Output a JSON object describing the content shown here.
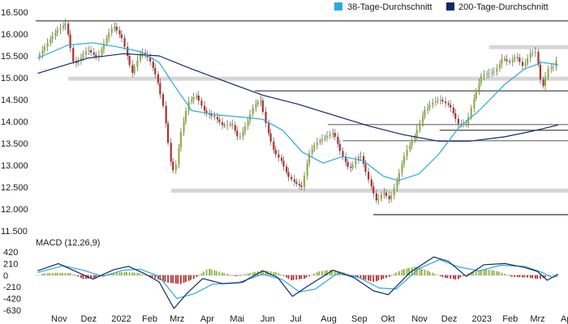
{
  "chart_data": [
    {
      "type": "candlestick",
      "title": "",
      "y_ticks": [
        "16.500",
        "16.000",
        "15.500",
        "15.000",
        "14.500",
        "14.000",
        "13.500",
        "13.000",
        "12.500",
        "12.000",
        "11.500"
      ],
      "ylim": [
        11500,
        16500
      ],
      "x_tick_labels": [
        "Nov",
        "Dez",
        "2022",
        "Feb",
        "Mrz",
        "Apr",
        "Mai",
        "Jun",
        "Jul",
        "Aug",
        "Sep",
        "Okt",
        "Nov",
        "Dez",
        "2023",
        "Feb",
        "Mrz",
        "Apr"
      ],
      "x_dates": [
        "2021-11-01",
        "2021-12-01",
        "2022-01-01",
        "2022-02-01",
        "2022-03-01",
        "2022-04-01",
        "2022-05-01",
        "2022-06-01",
        "2022-07-01",
        "2022-08-01",
        "2022-09-01",
        "2022-10-01",
        "2022-11-01",
        "2022-12-01",
        "2023-01-01",
        "2023-02-01",
        "2023-03-01",
        "2023-04-01"
      ],
      "x_range": [
        "2021-10-18",
        "2023-04-10"
      ],
      "legend": [
        {
          "name": "38-Tage-Durchschnitt",
          "color": "#29a9e0"
        },
        {
          "name": "200-Tage-Durchschnitt",
          "color": "#0d2a6b"
        }
      ],
      "legend_position": "top-right",
      "colors": {
        "up": "#8cb33a",
        "down": "#b2302b",
        "wick": "#555555"
      },
      "series_close": [
        [
          "2021-10-20",
          15450
        ],
        [
          "2021-11-01",
          15850
        ],
        [
          "2021-11-08",
          16050
        ],
        [
          "2021-11-18",
          16250
        ],
        [
          "2021-11-26",
          15300
        ],
        [
          "2021-12-01",
          15400
        ],
        [
          "2021-12-10",
          15650
        ],
        [
          "2021-12-20",
          15450
        ],
        [
          "2021-12-30",
          15950
        ],
        [
          "2022-01-05",
          16200
        ],
        [
          "2022-01-14",
          15900
        ],
        [
          "2022-01-24",
          15100
        ],
        [
          "2022-02-02",
          15600
        ],
        [
          "2022-02-10",
          15450
        ],
        [
          "2022-02-18",
          15000
        ],
        [
          "2022-02-25",
          14300
        ],
        [
          "2022-03-04",
          13100
        ],
        [
          "2022-03-08",
          12800
        ],
        [
          "2022-03-14",
          13700
        ],
        [
          "2022-03-22",
          14450
        ],
        [
          "2022-03-30",
          14600
        ],
        [
          "2022-04-08",
          14200
        ],
        [
          "2022-04-18",
          14100
        ],
        [
          "2022-04-26",
          13900
        ],
        [
          "2022-05-05",
          13950
        ],
        [
          "2022-05-12",
          13600
        ],
        [
          "2022-05-20",
          13950
        ],
        [
          "2022-05-27",
          14350
        ],
        [
          "2022-06-03",
          14500
        ],
        [
          "2022-06-10",
          13800
        ],
        [
          "2022-06-17",
          13300
        ],
        [
          "2022-06-24",
          13100
        ],
        [
          "2022-07-01",
          12750
        ],
        [
          "2022-07-08",
          12600
        ],
        [
          "2022-07-15",
          12500
        ],
        [
          "2022-07-22",
          13250
        ],
        [
          "2022-07-29",
          13500
        ],
        [
          "2022-08-08",
          13650
        ],
        [
          "2022-08-16",
          13750
        ],
        [
          "2022-08-24",
          13250
        ],
        [
          "2022-09-01",
          12900
        ],
        [
          "2022-09-12",
          13250
        ],
        [
          "2022-09-20",
          12700
        ],
        [
          "2022-09-29",
          12150
        ],
        [
          "2022-10-05",
          12400
        ],
        [
          "2022-10-12",
          12200
        ],
        [
          "2022-10-20",
          12700
        ],
        [
          "2022-10-28",
          13300
        ],
        [
          "2022-11-07",
          13700
        ],
        [
          "2022-11-16",
          14250
        ],
        [
          "2022-11-25",
          14450
        ],
        [
          "2022-12-02",
          14500
        ],
        [
          "2022-12-12",
          14350
        ],
        [
          "2022-12-20",
          13950
        ],
        [
          "2022-12-29",
          13950
        ],
        [
          "2023-01-06",
          14600
        ],
        [
          "2023-01-13",
          15050
        ],
        [
          "2023-01-20",
          15100
        ],
        [
          "2023-01-27",
          15150
        ],
        [
          "2023-02-03",
          15450
        ],
        [
          "2023-02-10",
          15350
        ],
        [
          "2023-02-17",
          15500
        ],
        [
          "2023-02-24",
          15250
        ],
        [
          "2023-03-03",
          15550
        ],
        [
          "2023-03-09",
          15600
        ],
        [
          "2023-03-13",
          15000
        ],
        [
          "2023-03-16",
          14800
        ],
        [
          "2023-03-21",
          15200
        ],
        [
          "2023-03-27",
          15250
        ],
        [
          "2023-03-31",
          15500
        ]
      ],
      "series_ma38": [
        [
          "2021-10-20",
          15450
        ],
        [
          "2021-11-20",
          15750
        ],
        [
          "2021-12-15",
          15800
        ],
        [
          "2022-01-10",
          15700
        ],
        [
          "2022-02-01",
          15600
        ],
        [
          "2022-02-20",
          15350
        ],
        [
          "2022-03-08",
          14800
        ],
        [
          "2022-03-25",
          14250
        ],
        [
          "2022-04-20",
          14150
        ],
        [
          "2022-05-15",
          14100
        ],
        [
          "2022-06-05",
          14050
        ],
        [
          "2022-06-25",
          13800
        ],
        [
          "2022-07-15",
          13300
        ],
        [
          "2022-08-05",
          13050
        ],
        [
          "2022-08-25",
          13200
        ],
        [
          "2022-09-15",
          13100
        ],
        [
          "2022-10-05",
          12750
        ],
        [
          "2022-10-20",
          12650
        ],
        [
          "2022-11-10",
          12800
        ],
        [
          "2022-11-30",
          13250
        ],
        [
          "2022-12-20",
          13850
        ],
        [
          "2023-01-10",
          14250
        ],
        [
          "2023-02-05",
          14850
        ],
        [
          "2023-02-25",
          15200
        ],
        [
          "2023-03-15",
          15350
        ],
        [
          "2023-03-31",
          15300
        ]
      ],
      "series_ma200": [
        [
          "2021-10-20",
          15100
        ],
        [
          "2021-12-10",
          15450
        ],
        [
          "2022-01-15",
          15550
        ],
        [
          "2022-02-20",
          15500
        ],
        [
          "2022-03-25",
          15200
        ],
        [
          "2022-04-30",
          14900
        ],
        [
          "2022-06-05",
          14600
        ],
        [
          "2022-07-10",
          14400
        ],
        [
          "2022-08-15",
          14150
        ],
        [
          "2022-09-20",
          13900
        ],
        [
          "2022-10-25",
          13700
        ],
        [
          "2022-11-30",
          13550
        ],
        [
          "2022-12-31",
          13550
        ],
        [
          "2023-02-05",
          13650
        ],
        [
          "2023-03-05",
          13780
        ],
        [
          "2023-03-31",
          13920
        ]
      ],
      "support_lines": [
        {
          "y": 16300,
          "x_start": "2021-10-18",
          "x_end": "2023-04-10",
          "color": "#333333"
        },
        {
          "y": 15700,
          "x_start": "2023-01-20",
          "x_end": "2023-04-10",
          "color": "#d6d6d6"
        },
        {
          "y": 14980,
          "x_start": "2021-11-20",
          "x_end": "2023-04-10",
          "color": "#d6d6d6"
        },
        {
          "y": 14700,
          "x_start": "2022-05-28",
          "x_end": "2023-04-10",
          "color": "#333333"
        },
        {
          "y": 13930,
          "x_start": "2022-08-10",
          "x_end": "2023-04-10",
          "color": "#777777"
        },
        {
          "y": 13800,
          "x_start": "2022-12-01",
          "x_end": "2023-04-10",
          "color": "#333333"
        },
        {
          "y": 13560,
          "x_start": "2022-08-25",
          "x_end": "2023-04-10",
          "color": "#777777"
        },
        {
          "y": 12420,
          "x_start": "2022-03-04",
          "x_end": "2023-04-10",
          "color": "#d6d6d6"
        },
        {
          "y": 11870,
          "x_start": "2022-09-25",
          "x_end": "2023-04-10",
          "color": "#333333"
        }
      ]
    },
    {
      "type": "line",
      "title": "MACD (12,26,9)",
      "y_ticks": [
        "420",
        "210",
        "0",
        "-210",
        "-420",
        "-630"
      ],
      "ylim": [
        -630,
        420
      ],
      "macd_color": "#0d2a6b",
      "signal_color": "#29a9e0",
      "hist_pos_color": "#8cb33a",
      "hist_neg_color": "#b2302b",
      "series_macd": [
        [
          "2021-10-20",
          80
        ],
        [
          "2021-11-10",
          210
        ],
        [
          "2021-11-30",
          50
        ],
        [
          "2021-12-15",
          -70
        ],
        [
          "2022-01-05",
          100
        ],
        [
          "2022-01-20",
          160
        ],
        [
          "2022-02-05",
          30
        ],
        [
          "2022-02-20",
          -120
        ],
        [
          "2022-03-07",
          -600
        ],
        [
          "2022-03-20",
          -330
        ],
        [
          "2022-04-05",
          -60
        ],
        [
          "2022-04-25",
          -150
        ],
        [
          "2022-05-15",
          -130
        ],
        [
          "2022-06-05",
          80
        ],
        [
          "2022-06-20",
          -40
        ],
        [
          "2022-07-05",
          -380
        ],
        [
          "2022-07-20",
          -200
        ],
        [
          "2022-08-15",
          90
        ],
        [
          "2022-09-05",
          -40
        ],
        [
          "2022-09-25",
          -280
        ],
        [
          "2022-10-10",
          -350
        ],
        [
          "2022-11-01",
          50
        ],
        [
          "2022-11-25",
          330
        ],
        [
          "2022-12-10",
          250
        ],
        [
          "2022-12-28",
          -20
        ],
        [
          "2023-01-15",
          190
        ],
        [
          "2023-02-05",
          210
        ],
        [
          "2023-02-25",
          140
        ],
        [
          "2023-03-10",
          70
        ],
        [
          "2023-03-20",
          -90
        ],
        [
          "2023-03-31",
          20
        ]
      ],
      "series_signal": [
        [
          "2021-10-20",
          50
        ],
        [
          "2021-11-15",
          170
        ],
        [
          "2021-12-05",
          90
        ],
        [
          "2021-12-25",
          -20
        ],
        [
          "2022-01-15",
          90
        ],
        [
          "2022-02-01",
          110
        ],
        [
          "2022-02-20",
          -20
        ],
        [
          "2022-03-10",
          -420
        ],
        [
          "2022-03-28",
          -330
        ],
        [
          "2022-04-15",
          -160
        ],
        [
          "2022-05-10",
          -140
        ],
        [
          "2022-06-05",
          20
        ],
        [
          "2022-06-25",
          -80
        ],
        [
          "2022-07-12",
          -300
        ],
        [
          "2022-07-28",
          -250
        ],
        [
          "2022-08-20",
          40
        ],
        [
          "2022-09-10",
          -40
        ],
        [
          "2022-10-01",
          -230
        ],
        [
          "2022-10-18",
          -250
        ],
        [
          "2022-11-10",
          120
        ],
        [
          "2022-12-01",
          280
        ],
        [
          "2022-12-20",
          150
        ],
        [
          "2023-01-10",
          80
        ],
        [
          "2023-02-01",
          180
        ],
        [
          "2023-02-25",
          160
        ],
        [
          "2023-03-15",
          50
        ],
        [
          "2023-03-25",
          -40
        ],
        [
          "2023-03-31",
          -10
        ]
      ],
      "series_histogram": [
        [
          "2021-10-25",
          30
        ],
        [
          "2021-11-08",
          45
        ],
        [
          "2021-11-22",
          40
        ],
        [
          "2021-12-06",
          -70
        ],
        [
          "2021-12-20",
          -40
        ],
        [
          "2022-01-03",
          40
        ],
        [
          "2022-01-17",
          60
        ],
        [
          "2022-01-31",
          40
        ],
        [
          "2022-02-14",
          -40
        ],
        [
          "2022-02-28",
          -130
        ],
        [
          "2022-03-14",
          -160
        ],
        [
          "2022-03-28",
          -60
        ],
        [
          "2022-04-11",
          120
        ],
        [
          "2022-04-25",
          50
        ],
        [
          "2022-05-09",
          -20
        ],
        [
          "2022-05-23",
          40
        ],
        [
          "2022-06-06",
          90
        ],
        [
          "2022-06-20",
          50
        ],
        [
          "2022-07-04",
          -90
        ],
        [
          "2022-07-18",
          -60
        ],
        [
          "2022-08-01",
          70
        ],
        [
          "2022-08-15",
          100
        ],
        [
          "2022-08-29",
          40
        ],
        [
          "2022-09-12",
          -60
        ],
        [
          "2022-09-26",
          -120
        ],
        [
          "2022-10-10",
          -40
        ],
        [
          "2022-10-24",
          100
        ],
        [
          "2022-11-07",
          160
        ],
        [
          "2022-11-21",
          70
        ],
        [
          "2022-12-05",
          -40
        ],
        [
          "2022-12-19",
          -80
        ],
        [
          "2023-01-02",
          60
        ],
        [
          "2023-01-16",
          110
        ],
        [
          "2023-01-30",
          70
        ],
        [
          "2023-02-13",
          -30
        ],
        [
          "2023-02-27",
          -40
        ],
        [
          "2023-03-13",
          -70
        ],
        [
          "2023-03-27",
          20
        ]
      ]
    }
  ]
}
